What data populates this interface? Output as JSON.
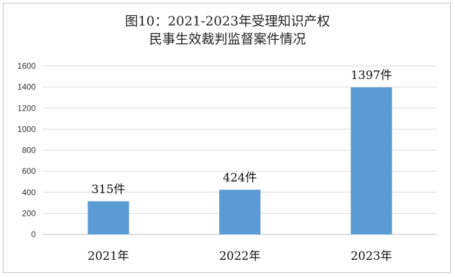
{
  "chart_data": {
    "type": "bar",
    "title_lines": [
      "图10：2021-2023年受理知识产权",
      "民事生效裁判监督案件情况"
    ],
    "categories": [
      "2021年",
      "2022年",
      "2023年"
    ],
    "values": [
      315,
      424,
      1397
    ],
    "data_labels": [
      "315件",
      "424件",
      "1397件"
    ],
    "y_ticks": [
      "0",
      "200",
      "400",
      "600",
      "800",
      "1000",
      "1200",
      "1400",
      "1600"
    ],
    "ylim": [
      0,
      1600
    ],
    "xlabel": "",
    "ylabel": "",
    "grid": true,
    "legend": "none",
    "bar_color": "#5B9BD5",
    "grid_color": "#d9d9d9"
  }
}
